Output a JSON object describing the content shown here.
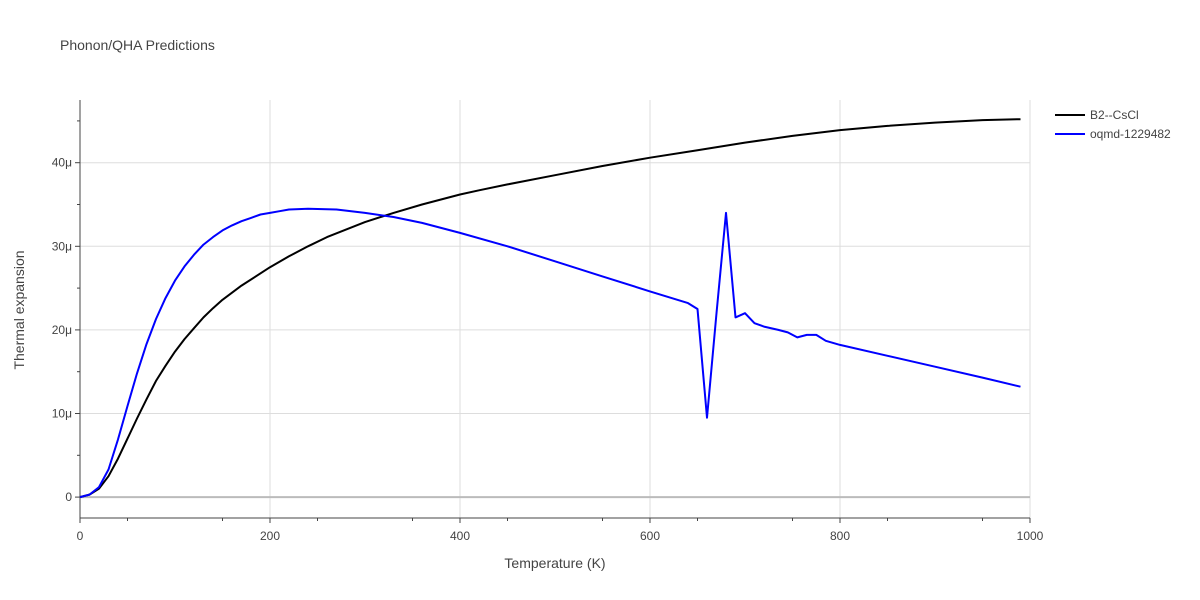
{
  "chart_data": {
    "type": "line",
    "title": "Phonon/QHA Predictions",
    "xlabel": "Temperature (K)",
    "ylabel": "Thermal expansion",
    "xlim": [
      0,
      1000
    ],
    "ylim": [
      -2.5e-06,
      4.75e-05
    ],
    "x_ticks": [
      0,
      200,
      400,
      600,
      800,
      1000
    ],
    "x_tick_labels": [
      "0",
      "200",
      "400",
      "600",
      "800",
      "1000"
    ],
    "y_ticks": [
      0,
      1e-05,
      2e-05,
      3e-05,
      4e-05
    ],
    "y_tick_labels": [
      "0",
      "10μ",
      "20μ",
      "30μ",
      "40μ"
    ],
    "grid": true,
    "legend_position": "top-right",
    "series": [
      {
        "name": "B2--CsCl",
        "color": "#000000",
        "x": [
          0,
          10,
          20,
          30,
          40,
          50,
          60,
          70,
          80,
          90,
          100,
          110,
          120,
          130,
          140,
          150,
          170,
          200,
          220,
          240,
          260,
          280,
          300,
          330,
          360,
          400,
          420,
          450,
          500,
          550,
          600,
          650,
          700,
          750,
          800,
          850,
          900,
          950,
          990
        ],
        "y": [
          0,
          3e-07,
          1e-06,
          2.5e-06,
          4.6e-06,
          7e-06,
          9.4e-06,
          1.17e-05,
          1.39e-05,
          1.57e-05,
          1.74e-05,
          1.89e-05,
          2.02e-05,
          2.15e-05,
          2.26e-05,
          2.36e-05,
          2.53e-05,
          2.75e-05,
          2.88e-05,
          3e-05,
          3.11e-05,
          3.2e-05,
          3.29e-05,
          3.4e-05,
          3.5e-05,
          3.62e-05,
          3.67e-05,
          3.74e-05,
          3.85e-05,
          3.96e-05,
          4.06e-05,
          4.15e-05,
          4.24e-05,
          4.32e-05,
          4.39e-05,
          4.44e-05,
          4.48e-05,
          4.51e-05,
          4.52e-05
        ]
      },
      {
        "name": "oqmd-1229482",
        "color": "#0000ff",
        "x": [
          0,
          10,
          20,
          30,
          40,
          50,
          60,
          70,
          80,
          90,
          100,
          110,
          120,
          130,
          140,
          150,
          160,
          170,
          180,
          190,
          200,
          210,
          220,
          240,
          270,
          300,
          330,
          360,
          400,
          450,
          500,
          550,
          600,
          640,
          650,
          660,
          670,
          680,
          690,
          700,
          710,
          720,
          735,
          745,
          755,
          765,
          775,
          785,
          800,
          850,
          900,
          950,
          990
        ],
        "y": [
          0,
          3e-07,
          1.2e-06,
          3.3e-06,
          6.9e-06,
          1.09e-05,
          1.48e-05,
          1.83e-05,
          2.13e-05,
          2.38e-05,
          2.59e-05,
          2.76e-05,
          2.9e-05,
          3.02e-05,
          3.11e-05,
          3.19e-05,
          3.25e-05,
          3.3e-05,
          3.34e-05,
          3.38e-05,
          3.4e-05,
          3.42e-05,
          3.44e-05,
          3.45e-05,
          3.44e-05,
          3.4e-05,
          3.35e-05,
          3.28e-05,
          3.16e-05,
          3e-05,
          2.82e-05,
          2.64e-05,
          2.46e-05,
          2.32e-05,
          2.25e-05,
          9.5e-06,
          2.2e-05,
          3.4e-05,
          2.15e-05,
          2.2e-05,
          2.08e-05,
          2.04e-05,
          2e-05,
          1.97e-05,
          1.91e-05,
          1.94e-05,
          1.94e-05,
          1.87e-05,
          1.82e-05,
          1.69e-05,
          1.56e-05,
          1.43e-05,
          1.32e-05
        ]
      }
    ]
  }
}
